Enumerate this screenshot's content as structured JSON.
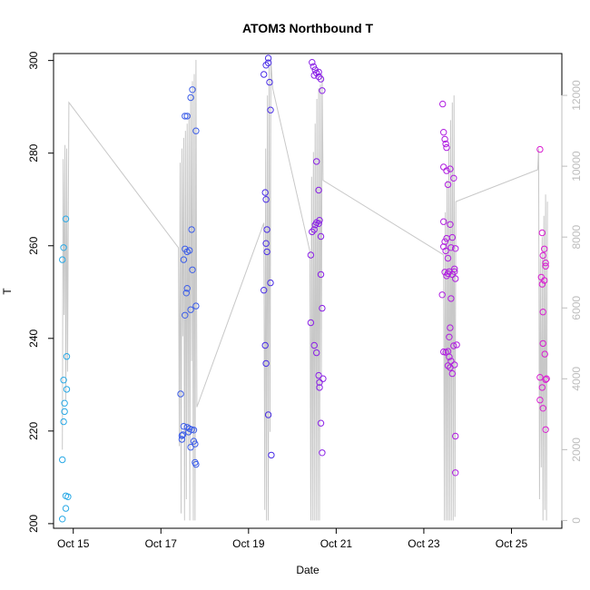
{
  "chart_data": {
    "type": "scatter",
    "title": "ATOM3 Northbound T",
    "xlabel": "Date",
    "ylabel": "T",
    "x_ticks": [
      "Oct 15",
      "Oct 17",
      "Oct 19",
      "Oct 21",
      "Oct 23",
      "Oct 25"
    ],
    "x_tick_days": [
      15,
      17,
      19,
      21,
      23,
      25
    ],
    "xlim": [
      14.55,
      26.15
    ],
    "ylim": [
      199,
      301.5
    ],
    "y_ticks": [
      200,
      220,
      240,
      260,
      280,
      300
    ],
    "y2lim": [
      -220,
      13180
    ],
    "y2_ticks": [
      0,
      2000,
      4000,
      6000,
      8000,
      10000,
      12000
    ],
    "colors": {
      "line": "#c8c8c8",
      "right_axis": "#bdbdbd",
      "frame": "#000000"
    },
    "series": [
      {
        "color": "#29a9e6",
        "points": [
          [
            14.75,
            201
          ],
          [
            14.75,
            213.8
          ],
          [
            14.78,
            222
          ],
          [
            14.78,
            231
          ],
          [
            14.8,
            226
          ],
          [
            14.8,
            224.2
          ],
          [
            14.75,
            257
          ],
          [
            14.78,
            259.6
          ],
          [
            14.83,
            265.8
          ],
          [
            14.85,
            236.1
          ],
          [
            14.85,
            229
          ],
          [
            14.83,
            206
          ],
          [
            14.88,
            205.8
          ],
          [
            14.83,
            203.3
          ]
        ]
      },
      {
        "color": "#3d5ee8",
        "points": [
          [
            17.45,
            228
          ],
          [
            17.48,
            218.2
          ],
          [
            17.48,
            219
          ],
          [
            17.5,
            219.2
          ],
          [
            17.52,
            221
          ],
          [
            17.52,
            257
          ],
          [
            17.55,
            259.3
          ],
          [
            17.6,
            258.7
          ],
          [
            17.65,
            259
          ],
          [
            17.58,
            249.8
          ],
          [
            17.6,
            250.8
          ],
          [
            17.55,
            245
          ],
          [
            17.68,
            246.2
          ],
          [
            17.8,
            247
          ],
          [
            17.72,
            254.8
          ],
          [
            17.7,
            263.5
          ],
          [
            17.55,
            288
          ],
          [
            17.6,
            288
          ],
          [
            17.68,
            292
          ],
          [
            17.72,
            293.7
          ],
          [
            17.8,
            284.8
          ],
          [
            17.6,
            220.8
          ],
          [
            17.65,
            220.5
          ],
          [
            17.7,
            220.3
          ],
          [
            17.75,
            220.2
          ],
          [
            17.63,
            219.8
          ],
          [
            17.68,
            216.5
          ],
          [
            17.75,
            217.8
          ],
          [
            17.78,
            217.2
          ],
          [
            17.78,
            213.2
          ],
          [
            17.8,
            212.8
          ]
        ]
      },
      {
        "color": "#4a2ee6",
        "points": [
          [
            19.35,
            297
          ],
          [
            19.4,
            299
          ],
          [
            19.45,
            300.5
          ],
          [
            19.45,
            299.5
          ],
          [
            19.48,
            295.3
          ],
          [
            19.5,
            289.3
          ],
          [
            19.38,
            271.5
          ],
          [
            19.4,
            270
          ],
          [
            19.42,
            263.5
          ],
          [
            19.4,
            260.5
          ],
          [
            19.42,
            258.7
          ],
          [
            19.35,
            250.4
          ],
          [
            19.5,
            252
          ],
          [
            19.38,
            238.5
          ],
          [
            19.4,
            234.6
          ],
          [
            19.45,
            223.5
          ],
          [
            19.52,
            214.8
          ]
        ]
      },
      {
        "color": "#8a20e6",
        "points": [
          [
            20.45,
            299.6
          ],
          [
            20.48,
            298.7
          ],
          [
            20.5,
            296.8
          ],
          [
            20.55,
            297.3
          ],
          [
            20.52,
            298
          ],
          [
            20.6,
            297.5
          ],
          [
            20.6,
            296.5
          ],
          [
            20.65,
            296
          ],
          [
            20.68,
            293.5
          ],
          [
            20.42,
            258
          ],
          [
            20.45,
            263
          ],
          [
            20.5,
            263.5
          ],
          [
            20.52,
            264.5
          ],
          [
            20.55,
            265
          ],
          [
            20.6,
            264.8
          ],
          [
            20.62,
            265.5
          ],
          [
            20.55,
            278.2
          ],
          [
            20.6,
            272
          ],
          [
            20.65,
            262
          ],
          [
            20.65,
            253.8
          ],
          [
            20.42,
            243.4
          ],
          [
            20.68,
            246.5
          ],
          [
            20.5,
            238.5
          ],
          [
            20.55,
            236.9
          ],
          [
            20.6,
            232
          ],
          [
            20.62,
            229.4
          ],
          [
            20.62,
            230.5
          ],
          [
            20.65,
            221.7
          ],
          [
            20.7,
            231.3
          ],
          [
            20.68,
            215.3
          ]
        ]
      },
      {
        "color": "#b01fe0",
        "points": [
          [
            23.43,
            290.6
          ],
          [
            23.45,
            284.5
          ],
          [
            23.48,
            283
          ],
          [
            23.5,
            282
          ],
          [
            23.52,
            281.2
          ],
          [
            23.45,
            277
          ],
          [
            23.52,
            276.2
          ],
          [
            23.6,
            276.6
          ],
          [
            23.55,
            273.2
          ],
          [
            23.68,
            274.6
          ],
          [
            23.45,
            265.2
          ],
          [
            23.6,
            264.6
          ],
          [
            23.48,
            260.9
          ],
          [
            23.52,
            261.6
          ],
          [
            23.65,
            261.8
          ],
          [
            23.45,
            259.8
          ],
          [
            23.5,
            258.9
          ],
          [
            23.55,
            257.3
          ],
          [
            23.62,
            259.6
          ],
          [
            23.72,
            259.4
          ],
          [
            23.48,
            254.3
          ],
          [
            23.52,
            253.5
          ],
          [
            23.55,
            254
          ],
          [
            23.58,
            254.4
          ],
          [
            23.65,
            253.8
          ],
          [
            23.7,
            254.4
          ],
          [
            23.7,
            255
          ],
          [
            23.72,
            252.9
          ],
          [
            23.42,
            249.4
          ],
          [
            23.62,
            248.6
          ],
          [
            23.6,
            242.3
          ],
          [
            23.58,
            240.3
          ],
          [
            23.68,
            238.4
          ],
          [
            23.75,
            238.6
          ],
          [
            23.45,
            237.1
          ],
          [
            23.5,
            237
          ],
          [
            23.55,
            237.2
          ],
          [
            23.58,
            236
          ],
          [
            23.55,
            234.1
          ],
          [
            23.6,
            233.7
          ],
          [
            23.65,
            232.4
          ],
          [
            23.62,
            235.1
          ],
          [
            23.7,
            234.3
          ],
          [
            23.72,
            218.9
          ],
          [
            23.72,
            211
          ]
        ]
      },
      {
        "color": "#d91ed1",
        "points": [
          [
            25.65,
            280.8
          ],
          [
            25.7,
            262.8
          ],
          [
            25.75,
            259.3
          ],
          [
            25.72,
            257.9
          ],
          [
            25.78,
            256.3
          ],
          [
            25.78,
            255.6
          ],
          [
            25.68,
            253.2
          ],
          [
            25.7,
            251.7
          ],
          [
            25.75,
            252.5
          ],
          [
            25.72,
            245.7
          ],
          [
            25.72,
            238.9
          ],
          [
            25.76,
            236.6
          ],
          [
            25.65,
            231.6
          ],
          [
            25.8,
            231.3
          ],
          [
            25.78,
            231.1
          ],
          [
            25.7,
            229.4
          ],
          [
            25.65,
            226.7
          ],
          [
            25.72,
            224.9
          ],
          [
            25.78,
            220.3
          ]
        ]
      }
    ],
    "line_series": [
      {
        "y_axis": "right",
        "points": [
          [
            14.75,
            2000
          ],
          [
            14.77,
            10200
          ],
          [
            14.79,
            5800
          ],
          [
            14.81,
            10600
          ],
          [
            14.83,
            3400
          ],
          [
            14.85,
            10500
          ],
          [
            14.87,
            4200
          ],
          [
            14.9,
            11800
          ],
          [
            17.4,
            7700
          ],
          [
            17.42,
            2100
          ],
          [
            17.44,
            10100
          ],
          [
            17.46,
            200
          ],
          [
            17.48,
            10500
          ],
          [
            17.5,
            5200
          ],
          [
            17.52,
            10800
          ],
          [
            17.54,
            0
          ],
          [
            17.56,
            11000
          ],
          [
            17.58,
            600
          ],
          [
            17.6,
            11200
          ],
          [
            17.62,
            2100
          ],
          [
            17.64,
            11500
          ],
          [
            17.66,
            0
          ],
          [
            17.68,
            12000
          ],
          [
            17.7,
            4500
          ],
          [
            17.72,
            12400
          ],
          [
            17.74,
            0
          ],
          [
            17.76,
            12600
          ],
          [
            17.78,
            0
          ],
          [
            17.8,
            13000
          ],
          [
            17.82,
            3200
          ],
          [
            19.35,
            8400
          ],
          [
            19.37,
            300
          ],
          [
            19.39,
            10500
          ],
          [
            19.41,
            0
          ],
          [
            19.43,
            12000
          ],
          [
            19.45,
            0
          ],
          [
            19.47,
            12800
          ],
          [
            19.49,
            2500
          ],
          [
            19.51,
            13000
          ],
          [
            19.55,
            12200
          ],
          [
            20.4,
            7600
          ],
          [
            20.42,
            0
          ],
          [
            20.44,
            9700
          ],
          [
            20.46,
            0
          ],
          [
            20.48,
            10400
          ],
          [
            20.5,
            0
          ],
          [
            20.52,
            11200
          ],
          [
            20.54,
            0
          ],
          [
            20.56,
            11900
          ],
          [
            20.58,
            0
          ],
          [
            20.6,
            12200
          ],
          [
            20.62,
            0
          ],
          [
            20.64,
            12300
          ],
          [
            20.66,
            3800
          ],
          [
            20.68,
            12600
          ],
          [
            20.7,
            9600
          ],
          [
            23.45,
            7500
          ],
          [
            23.47,
            0
          ],
          [
            23.49,
            8700
          ],
          [
            23.51,
            0
          ],
          [
            23.53,
            9600
          ],
          [
            23.55,
            0
          ],
          [
            23.57,
            10500
          ],
          [
            23.59,
            0
          ],
          [
            23.61,
            11300
          ],
          [
            23.63,
            0
          ],
          [
            23.65,
            11800
          ],
          [
            23.67,
            0
          ],
          [
            23.69,
            12000
          ],
          [
            23.71,
            100
          ],
          [
            23.73,
            9000
          ],
          [
            25.6,
            9900
          ],
          [
            25.62,
            10500
          ],
          [
            25.64,
            600
          ],
          [
            25.66,
            7400
          ],
          [
            25.68,
            1500
          ],
          [
            25.7,
            8000
          ],
          [
            25.72,
            0
          ],
          [
            25.74,
            8600
          ],
          [
            25.76,
            300
          ],
          [
            25.78,
            9200
          ],
          [
            25.8,
            0
          ],
          [
            25.82,
            9000
          ]
        ]
      }
    ]
  }
}
